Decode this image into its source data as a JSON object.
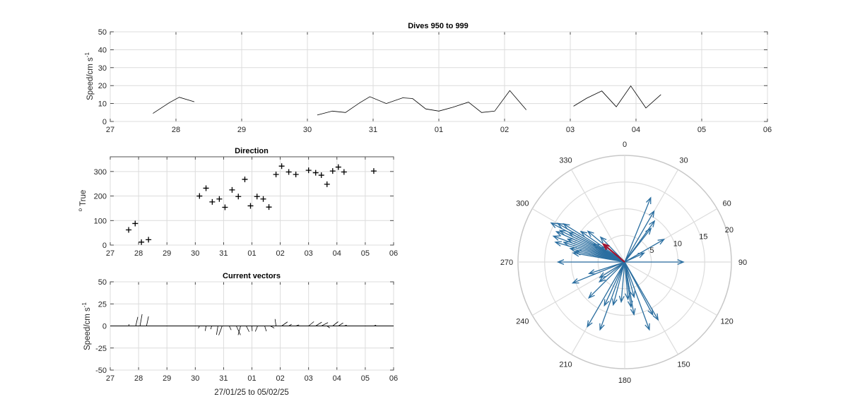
{
  "chart_data": [
    {
      "id": "speed",
      "type": "line",
      "title": "Dives 950 to 999",
      "ylabel": "Speed/cm s",
      "ylabel_sup": "-1",
      "xlim": [
        0,
        10
      ],
      "ylim": [
        0,
        50
      ],
      "yticks": [
        0,
        10,
        20,
        30,
        40,
        50
      ],
      "xtick_labels": [
        "27",
        "28",
        "29",
        "30",
        "31",
        "01",
        "02",
        "03",
        "04",
        "05",
        "06"
      ],
      "grid": true,
      "segments": [
        [
          [
            0.65,
            4.5
          ],
          [
            0.9,
            10.5
          ],
          [
            1.05,
            13.5
          ],
          [
            1.28,
            11
          ]
        ],
        [
          [
            3.15,
            3.6
          ],
          [
            3.38,
            5.8
          ],
          [
            3.58,
            5.0
          ],
          [
            3.8,
            10.5
          ],
          [
            3.95,
            13.8
          ],
          [
            4.2,
            10.0
          ],
          [
            4.45,
            13.2
          ],
          [
            4.6,
            12.8
          ],
          [
            4.8,
            7.0
          ],
          [
            5.0,
            5.8
          ],
          [
            5.2,
            7.8
          ],
          [
            5.45,
            10.8
          ],
          [
            5.65,
            5.0
          ],
          [
            5.85,
            5.8
          ],
          [
            6.08,
            17.2
          ],
          [
            6.33,
            6.5
          ]
        ],
        [
          [
            7.05,
            8.5
          ],
          [
            7.25,
            13.0
          ],
          [
            7.48,
            17.0
          ],
          [
            7.7,
            8.2
          ],
          [
            7.92,
            19.8
          ],
          [
            8.15,
            7.5
          ],
          [
            8.38,
            15.0
          ]
        ]
      ]
    },
    {
      "id": "direction",
      "type": "scatter",
      "title": "Direction",
      "ylabel": "True",
      "ylabel_sup": "o",
      "xlim": [
        0,
        10
      ],
      "ylim": [
        0,
        360
      ],
      "yticks": [
        0,
        100,
        200,
        300
      ],
      "xtick_labels": [
        "27",
        "28",
        "29",
        "30",
        "31",
        "01",
        "02",
        "03",
        "04",
        "05",
        "06"
      ],
      "grid": true,
      "points": [
        [
          0.65,
          62
        ],
        [
          0.88,
          88
        ],
        [
          1.1,
          12
        ],
        [
          1.35,
          22
        ],
        [
          3.15,
          200
        ],
        [
          3.38,
          232
        ],
        [
          3.6,
          176
        ],
        [
          3.85,
          188
        ],
        [
          4.05,
          154
        ],
        [
          4.3,
          225
        ],
        [
          4.52,
          198
        ],
        [
          4.75,
          268
        ],
        [
          4.95,
          160
        ],
        [
          5.18,
          198
        ],
        [
          5.4,
          188
        ],
        [
          5.6,
          155
        ],
        [
          5.85,
          288
        ],
        [
          6.05,
          322
        ],
        [
          6.3,
          298
        ],
        [
          6.55,
          288
        ],
        [
          7.0,
          305
        ],
        [
          7.25,
          295
        ],
        [
          7.45,
          285
        ],
        [
          7.65,
          248
        ],
        [
          7.85,
          302
        ],
        [
          8.05,
          318
        ],
        [
          8.25,
          298
        ],
        [
          9.3,
          302
        ]
      ]
    },
    {
      "id": "vectors",
      "type": "line",
      "title": "Current vectors",
      "ylabel": "Speed/cm s",
      "ylabel_sup": "-1",
      "xlabel": "27/01/25 to 05/02/25",
      "xlim": [
        0,
        10
      ],
      "ylim": [
        -50,
        50
      ],
      "yticks": [
        -50,
        -25,
        0,
        25,
        50
      ],
      "xtick_labels": [
        "27",
        "28",
        "29",
        "30",
        "31",
        "01",
        "02",
        "03",
        "04",
        "05",
        "06"
      ],
      "grid": true,
      "vectors": [
        [
          0.65,
          0.5,
          2
        ],
        [
          0.9,
          2.3,
          10.2
        ],
        [
          1.05,
          2.4,
          13.3
        ],
        [
          1.28,
          2.3,
          10.8
        ],
        [
          3.15,
          -1.4,
          -2.7
        ],
        [
          3.38,
          -0.9,
          -5.6
        ],
        [
          3.58,
          -1.1,
          -3.7
        ],
        [
          3.8,
          -1.6,
          -10
        ],
        [
          3.95,
          -3.9,
          -10.5
        ],
        [
          4.2,
          2.2,
          -4.6
        ],
        [
          4.45,
          4.7,
          -10.3
        ],
        [
          4.6,
          -2.8,
          -10.3
        ],
        [
          4.8,
          3.3,
          -6.6
        ],
        [
          5.0,
          0.3,
          -5.8
        ],
        [
          5.2,
          -2.6,
          -6.3
        ],
        [
          5.45,
          1.9,
          -6.0
        ],
        [
          5.65,
          4.4,
          -2.4
        ],
        [
          5.85,
          -1.1,
          7.8
        ],
        [
          6.05,
          6.6,
          4.6
        ],
        [
          6.3,
          3.2,
          1.9
        ],
        [
          6.55,
          3.7,
          1.3
        ],
        [
          7.0,
          6.0,
          4.9
        ],
        [
          7.25,
          6.9,
          4.3
        ],
        [
          7.45,
          7.5,
          3.8
        ],
        [
          7.65,
          3.1,
          -2.2
        ],
        [
          7.85,
          6.2,
          4.8
        ],
        [
          8.05,
          5.4,
          3.4
        ],
        [
          8.25,
          3.1,
          1.0
        ],
        [
          9.3,
          2.6,
          1.0
        ]
      ]
    },
    {
      "id": "polar",
      "type": "scatter",
      "rmax": 20,
      "rticks": [
        5,
        10,
        15,
        20
      ],
      "angle_ticks": [
        "0",
        "30",
        "60",
        "90",
        "120",
        "150",
        "180",
        "210",
        "240",
        "270",
        "300",
        "330"
      ],
      "arrows": [
        [
          298,
          15.6
        ],
        [
          300,
          14.5
        ],
        [
          296,
          13.5
        ],
        [
          294,
          14.0
        ],
        [
          290,
          14.2
        ],
        [
          288,
          12.0
        ],
        [
          292,
          11.5
        ],
        [
          286,
          13.5
        ],
        [
          284,
          10.5
        ],
        [
          282,
          9.5
        ],
        [
          280,
          9.8
        ],
        [
          298,
          11.8
        ],
        [
          302,
          13.5
        ],
        [
          305,
          10.0
        ],
        [
          310,
          9.0
        ],
        [
          316,
          6.5
        ],
        [
          300,
          6.8
        ],
        [
          302,
          5.2
        ],
        [
          270,
          12.5
        ],
        [
          90,
          11.0
        ],
        [
          60,
          8.5
        ],
        [
          65,
          4.0
        ],
        [
          22,
          13.0
        ],
        [
          30,
          11.0
        ],
        [
          36,
          9.5
        ],
        [
          38,
          8.0
        ],
        [
          150,
          12.5
        ],
        [
          152,
          11.2
        ],
        [
          160,
          13.5
        ],
        [
          165,
          6.8
        ],
        [
          170,
          10.0
        ],
        [
          172,
          8.5
        ],
        [
          175,
          7.0
        ],
        [
          185,
          7.5
        ],
        [
          195,
          8.3
        ],
        [
          200,
          13.5
        ],
        [
          205,
          9.0
        ],
        [
          210,
          14.0
        ],
        [
          225,
          9.5
        ],
        [
          232,
          6.0
        ],
        [
          248,
          10.5
        ],
        [
          252,
          7.0
        ],
        [
          238,
          5.5
        ]
      ],
      "mean_arrow": [
        310,
        5.2
      ],
      "colors": {
        "arrows": "#2a6ea0",
        "mean": "#a2142f"
      }
    }
  ]
}
